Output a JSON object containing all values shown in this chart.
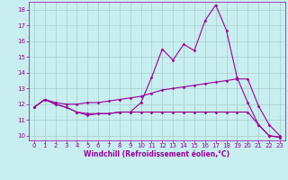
{
  "background_color": "#c8eef0",
  "grid_color": "#aacccc",
  "line_color": "#990099",
  "xlim": [
    -0.5,
    23.5
  ],
  "ylim": [
    9.7,
    18.5
  ],
  "xlabel": "Windchill (Refroidissement éolien,°C)",
  "x_ticks": [
    0,
    1,
    2,
    3,
    4,
    5,
    6,
    7,
    8,
    9,
    10,
    11,
    12,
    13,
    14,
    15,
    16,
    17,
    18,
    19,
    20,
    21,
    22,
    23
  ],
  "y_ticks": [
    10,
    11,
    12,
    13,
    14,
    15,
    16,
    17,
    18
  ],
  "curve1_x": [
    0,
    1,
    2,
    3,
    4,
    5,
    6,
    7,
    8,
    9,
    10,
    11,
    12,
    13,
    14,
    15,
    16,
    17,
    18,
    19,
    20,
    21,
    22,
    23
  ],
  "curve1_y": [
    11.8,
    12.3,
    12.0,
    11.8,
    11.5,
    11.3,
    11.4,
    11.4,
    11.5,
    11.5,
    12.1,
    13.7,
    15.5,
    14.8,
    15.8,
    15.4,
    17.3,
    18.3,
    16.7,
    13.7,
    12.1,
    10.7,
    10.0,
    9.9
  ],
  "curve2_x": [
    0,
    1,
    2,
    3,
    4,
    5,
    6,
    7,
    8,
    9,
    10,
    11,
    12,
    13,
    14,
    15,
    16,
    17,
    18,
    19,
    20,
    21,
    22,
    23
  ],
  "curve2_y": [
    11.8,
    12.3,
    12.1,
    12.0,
    12.0,
    12.1,
    12.1,
    12.2,
    12.3,
    12.4,
    12.5,
    12.7,
    12.9,
    13.0,
    13.1,
    13.2,
    13.3,
    13.4,
    13.5,
    13.6,
    13.6,
    11.9,
    10.7,
    10.0
  ],
  "curve3_x": [
    0,
    1,
    2,
    3,
    4,
    5,
    6,
    7,
    8,
    9,
    10,
    11,
    12,
    13,
    14,
    15,
    16,
    17,
    18,
    19,
    20,
    21,
    22,
    23
  ],
  "curve3_y": [
    11.8,
    12.3,
    12.0,
    11.8,
    11.5,
    11.4,
    11.4,
    11.4,
    11.5,
    11.5,
    11.5,
    11.5,
    11.5,
    11.5,
    11.5,
    11.5,
    11.5,
    11.5,
    11.5,
    11.5,
    11.5,
    10.7,
    10.0,
    9.9
  ],
  "marker_size": 1.8,
  "line_width": 0.8,
  "tick_fontsize": 5.0,
  "xlabel_fontsize": 5.5
}
